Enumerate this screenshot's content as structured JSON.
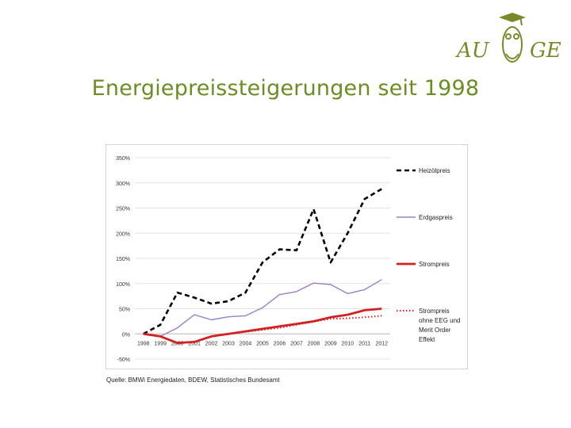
{
  "slide": {
    "title": "Energiepreissteigerungen seit 1998",
    "source": "Quelle: BMWi Energiedaten, BDEW, Statistisches Bundesamt",
    "logo": {
      "left_text": "AU",
      "right_text": "GE",
      "icon": "owl-graduate-icon",
      "color": "#7a8a2a"
    }
  },
  "chart_data": {
    "type": "line",
    "title": "",
    "xlabel": "",
    "ylabel": "",
    "x": [
      "1998",
      "1999",
      "2000",
      "2001",
      "2002",
      "2003",
      "2004",
      "2005",
      "2006",
      "2007",
      "2008",
      "2009",
      "2010",
      "2011",
      "2012"
    ],
    "yticks": [
      "350%",
      "300%",
      "250%",
      "200%",
      "150%",
      "100%",
      "50%",
      "0%",
      "-50%"
    ],
    "ylim": [
      -50,
      350
    ],
    "grid": true,
    "legend_position": "right",
    "series": [
      {
        "name": "Heizölpreis",
        "color": "#000000",
        "style": "dashed",
        "values": [
          0,
          18,
          82,
          72,
          60,
          65,
          82,
          142,
          168,
          166,
          248,
          142,
          200,
          268,
          288
        ]
      },
      {
        "name": "Erdgaspreis",
        "color": "#9b7fc8",
        "style": "solid",
        "values": [
          0,
          -5,
          12,
          38,
          28,
          34,
          36,
          52,
          78,
          84,
          101,
          98,
          80,
          88,
          108
        ]
      },
      {
        "name": "Strompreis",
        "color": "#d42020",
        "style": "solid-thick",
        "values": [
          0,
          -5,
          -18,
          -16,
          -5,
          0,
          5,
          10,
          15,
          20,
          25,
          33,
          38,
          47,
          50
        ]
      },
      {
        "name": "Strompreis ohne EEG und Merit Order Effekt",
        "color": "#d42020",
        "style": "dotted",
        "values": [
          0,
          -5,
          -18,
          -16,
          -5,
          0,
          4,
          8,
          12,
          18,
          24,
          30,
          31,
          33,
          36
        ]
      }
    ]
  }
}
